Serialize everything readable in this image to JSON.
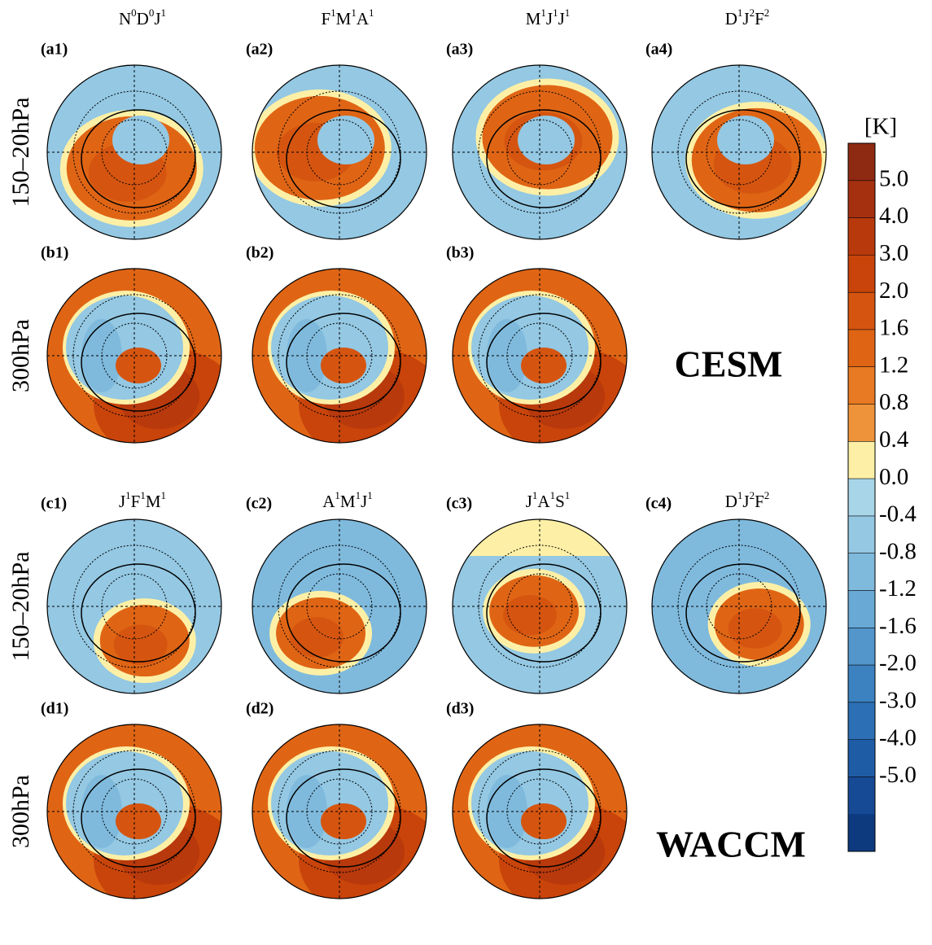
{
  "sections": [
    {
      "model": "CESM",
      "headers": [
        [
          [
            "N",
            "0"
          ],
          [
            "D",
            "0"
          ],
          [
            "J",
            "1"
          ]
        ],
        [
          [
            "F",
            "1"
          ],
          [
            "M",
            "1"
          ],
          [
            "A",
            "1"
          ]
        ],
        [
          [
            "M",
            "1"
          ],
          [
            "J",
            "1"
          ],
          [
            "J",
            "1"
          ]
        ],
        [
          [
            "D",
            "1"
          ],
          [
            "J",
            "2"
          ],
          [
            "F",
            "2"
          ]
        ]
      ],
      "rows": [
        {
          "level": "150–20hPa",
          "panels": [
            "(a1)",
            "(a2)",
            "(a3)",
            "(a4)"
          ]
        },
        {
          "level": "300hPa",
          "panels": [
            "(b1)",
            "(b2)",
            "(b3)"
          ]
        }
      ]
    },
    {
      "model": "WACCM",
      "headers": [
        [
          [
            "J",
            "1"
          ],
          [
            "F",
            "1"
          ],
          [
            "M",
            "1"
          ]
        ],
        [
          [
            "A",
            "1"
          ],
          [
            "M",
            "1"
          ],
          [
            "J",
            "1"
          ]
        ],
        [
          [
            "J",
            "1"
          ],
          [
            "A",
            "1"
          ],
          [
            "S",
            "1"
          ]
        ],
        [
          [
            "D",
            "1"
          ],
          [
            "J",
            "2"
          ],
          [
            "F",
            "2"
          ]
        ]
      ],
      "rows": [
        {
          "level": "150–20hPa",
          "panels": [
            "(c1)",
            "(c2)",
            "(c3)",
            "(c4)"
          ]
        },
        {
          "level": "300hPa",
          "panels": [
            "(d1)",
            "(d2)",
            "(d3)"
          ]
        }
      ]
    }
  ],
  "colorbar": {
    "unit": "[K]",
    "ticks": [
      "5.0",
      "4.0",
      "3.0",
      "2.0",
      "1.6",
      "1.2",
      "0.8",
      "0.4",
      "0.0",
      "-0.4",
      "-0.8",
      "-1.2",
      "-1.6",
      "-2.0",
      "-3.0",
      "-4.0",
      "-5.0"
    ],
    "colors": [
      "#8e2a12",
      "#a4300f",
      "#b8390c",
      "#c9440a",
      "#d55510",
      "#df6515",
      "#e77a22",
      "#ee933a",
      "#fdf0a6",
      "#a8d5e8",
      "#94c8e3",
      "#7fbadd",
      "#68a9d5",
      "#5296cb",
      "#3d82c0",
      "#2c6fb4",
      "#1f5ca6",
      "#164a95",
      "#0d3a7f"
    ]
  }
}
